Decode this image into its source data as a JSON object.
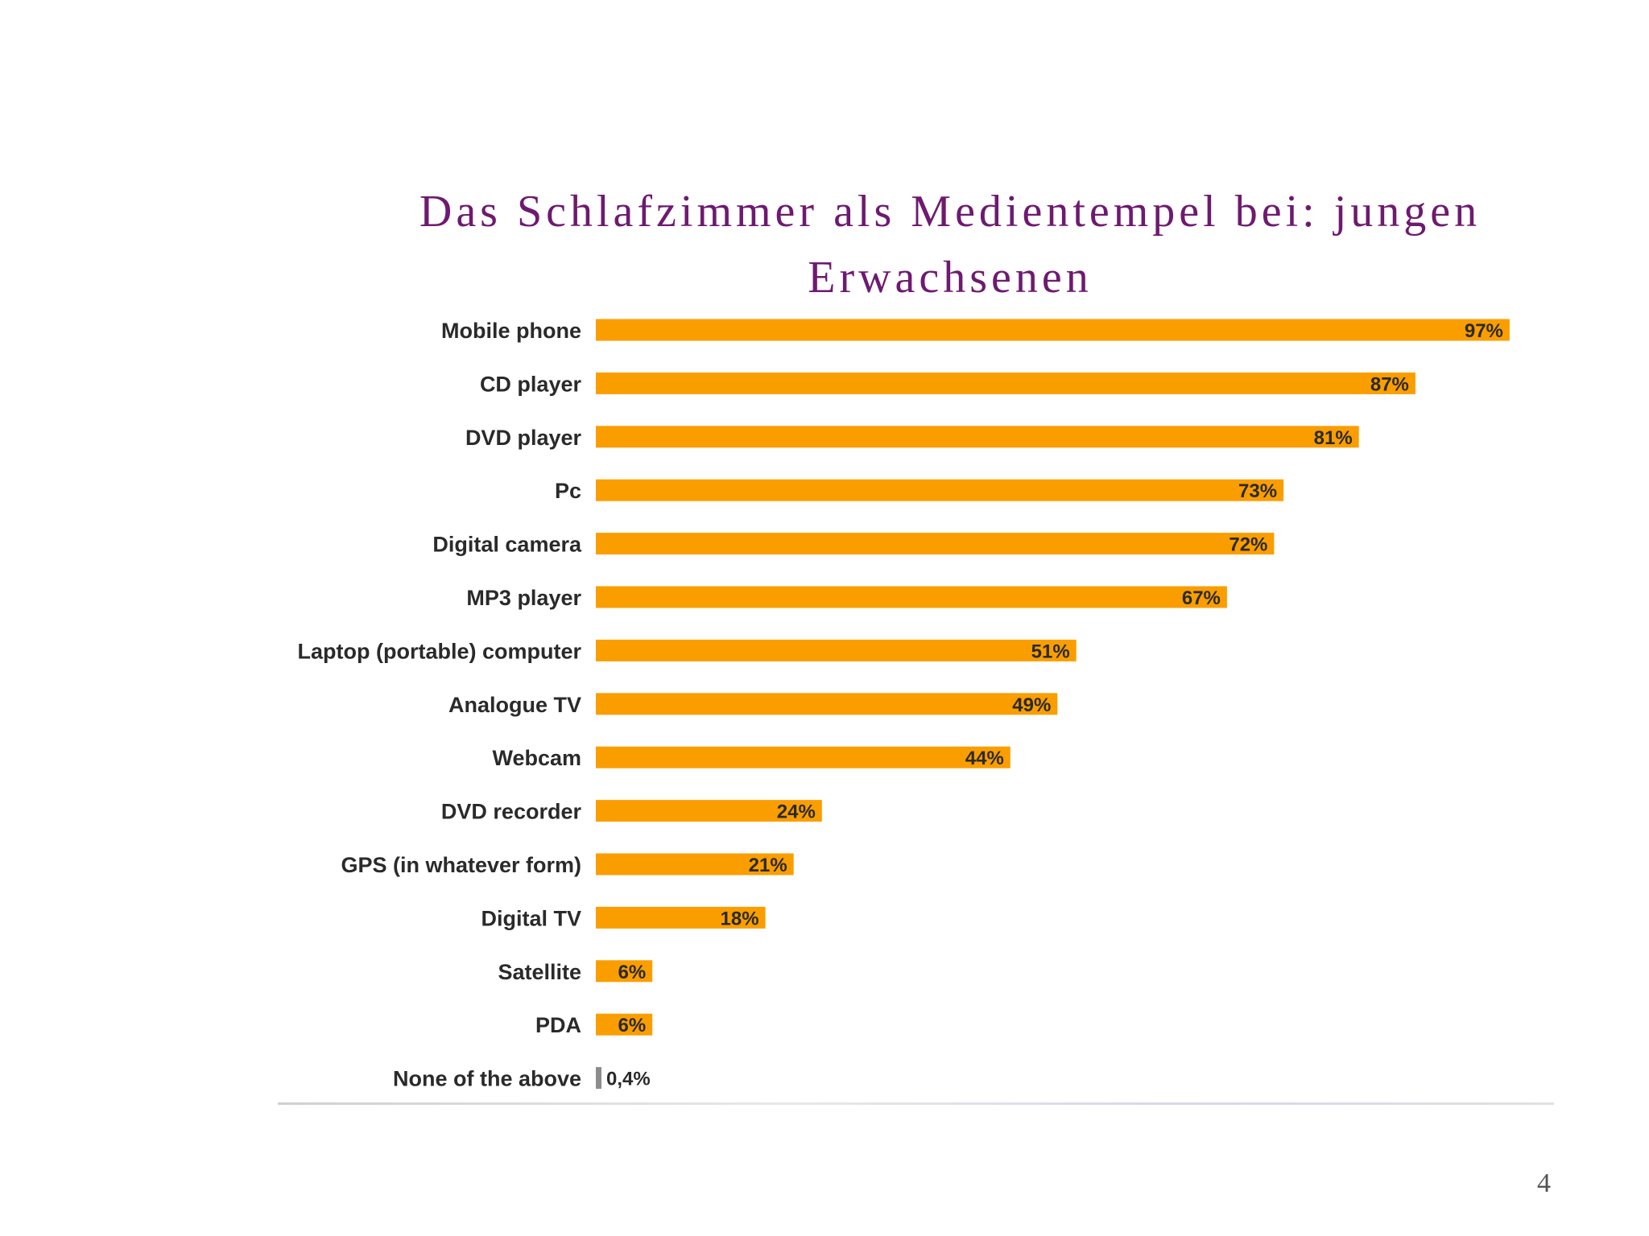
{
  "slide": {
    "title": "Das Schlafzimmer als Medientempel bei: jungen Erwachsenen",
    "page_number": "4"
  },
  "colors": {
    "bar": "#fa9e00",
    "bar_small": "#8c8c8c",
    "title": "#6e1a70",
    "text": "#2a2a2a"
  },
  "chart_data": {
    "type": "bar",
    "orientation": "horizontal",
    "title": "",
    "xlabel": "",
    "ylabel": "",
    "xlim": [
      0,
      100
    ],
    "grid": false,
    "legend": "none",
    "categories": [
      "Mobile phone",
      "CD player",
      "DVD player",
      "Pc",
      "Digital camera",
      "MP3 player",
      "Laptop (portable) computer",
      "Analogue TV",
      "Webcam",
      "DVD recorder",
      "GPS (in whatever form)",
      "Digital TV",
      "Satellite",
      "PDA",
      "None of the above"
    ],
    "values": [
      97,
      87,
      81,
      73,
      72,
      67,
      51,
      49,
      44,
      24,
      21,
      18,
      6,
      6,
      0.4
    ],
    "value_labels": [
      "97%",
      "87%",
      "81%",
      "73%",
      "72%",
      "67%",
      "51%",
      "49%",
      "44%",
      "24%",
      "21%",
      "18%",
      "6%",
      "6%",
      "0,4%"
    ]
  }
}
